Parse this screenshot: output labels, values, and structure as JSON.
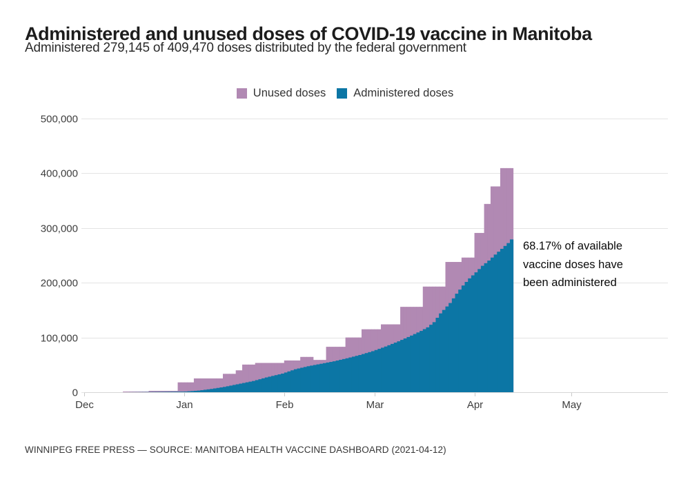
{
  "header": {
    "title": "Administered and unused doses of COVID-19 vaccine in Manitoba",
    "subtitle": "Administered 279,145 of 409,470 doses distributed by the federal government"
  },
  "footer": {
    "source": "WINNIPEG FREE PRESS — SOURCE: MANITOBA HEALTH VACCINE DASHBOARD (2021-04-12)"
  },
  "chart_data": {
    "type": "bar",
    "stacked": true,
    "title": "Administered and unused doses of COVID-19 vaccine in Manitoba",
    "subtitle": "Administered 279,145 of 409,470 doses distributed by the federal government",
    "administered_total": 279145,
    "distributed_total": 409470,
    "percent_administered": "68.17%",
    "legend": [
      {
        "label": "Unused doses",
        "color": "#b189b3"
      },
      {
        "label": "Administered doses",
        "color": "#0c76a5"
      }
    ],
    "series": [
      {
        "name": "Administered doses",
        "role": "administered",
        "color": "#0c76a5"
      },
      {
        "name": "Unused doses",
        "role": "unused",
        "color": "#b189b3"
      }
    ],
    "x_axis": {
      "domain": [
        "2020-12-01",
        "2021-05-31"
      ],
      "tick_dates": [
        "2020-12-01",
        "2021-01-01",
        "2021-02-01",
        "2021-03-01",
        "2021-04-01",
        "2021-05-01"
      ],
      "tick_labels": [
        "Dec",
        "Jan",
        "Feb",
        "Mar",
        "Apr",
        "May"
      ]
    },
    "y_axis": {
      "ylim": [
        0,
        500000
      ],
      "ticks": [
        0,
        100000,
        200000,
        300000,
        400000,
        500000
      ],
      "tick_labels": [
        "0",
        "100,000",
        "200,000",
        "300,000",
        "400,000",
        "500,000"
      ],
      "grid": true
    },
    "bars": {
      "start": "2020-12-13",
      "end": "2021-04-12",
      "frequency": "daily"
    },
    "distributed_steps": [
      {
        "from": "2020-12-13",
        "total": 1200
      },
      {
        "from": "2020-12-21",
        "total": 2500
      },
      {
        "from": "2020-12-30",
        "total": 18000
      },
      {
        "from": "2021-01-04",
        "total": 25200
      },
      {
        "from": "2021-01-13",
        "total": 33600
      },
      {
        "from": "2021-01-17",
        "total": 40000
      },
      {
        "from": "2021-01-19",
        "total": 50500
      },
      {
        "from": "2021-01-23",
        "total": 53500
      },
      {
        "from": "2021-02-01",
        "total": 58000
      },
      {
        "from": "2021-02-06",
        "total": 64500
      },
      {
        "from": "2021-02-10",
        "total": 59000
      },
      {
        "from": "2021-02-14",
        "total": 83000
      },
      {
        "from": "2021-02-20",
        "total": 100000
      },
      {
        "from": "2021-02-25",
        "total": 115000
      },
      {
        "from": "2021-03-03",
        "total": 124000
      },
      {
        "from": "2021-03-09",
        "total": 156000
      },
      {
        "from": "2021-03-16",
        "total": 193000
      },
      {
        "from": "2021-03-23",
        "total": 238000
      },
      {
        "from": "2021-03-28",
        "total": 246000
      },
      {
        "from": "2021-04-01",
        "total": 291000
      },
      {
        "from": "2021-04-04",
        "total": 344000
      },
      {
        "from": "2021-04-06",
        "total": 376000
      },
      {
        "from": "2021-04-09",
        "total": 409470
      }
    ],
    "administered_anchors": [
      {
        "date": "2020-12-13",
        "value": 0
      },
      {
        "date": "2020-12-16",
        "value": 150
      },
      {
        "date": "2020-12-21",
        "value": 400
      },
      {
        "date": "2020-12-26",
        "value": 700
      },
      {
        "date": "2020-12-31",
        "value": 1000
      },
      {
        "date": "2021-01-01",
        "value": 1200
      },
      {
        "date": "2021-01-05",
        "value": 3000
      },
      {
        "date": "2021-01-09",
        "value": 6000
      },
      {
        "date": "2021-01-13",
        "value": 9700
      },
      {
        "date": "2021-01-17",
        "value": 14500
      },
      {
        "date": "2021-01-22",
        "value": 20500
      },
      {
        "date": "2021-01-26",
        "value": 27000
      },
      {
        "date": "2021-01-31",
        "value": 34000
      },
      {
        "date": "2021-02-04",
        "value": 42000
      },
      {
        "date": "2021-02-08",
        "value": 47500
      },
      {
        "date": "2021-02-12",
        "value": 52000
      },
      {
        "date": "2021-02-16",
        "value": 56500
      },
      {
        "date": "2021-02-20",
        "value": 62000
      },
      {
        "date": "2021-02-24",
        "value": 68000
      },
      {
        "date": "2021-02-28",
        "value": 75000
      },
      {
        "date": "2021-03-04",
        "value": 83500
      },
      {
        "date": "2021-03-08",
        "value": 93000
      },
      {
        "date": "2021-03-12",
        "value": 103500
      },
      {
        "date": "2021-03-15",
        "value": 112000
      },
      {
        "date": "2021-03-17",
        "value": 118500
      },
      {
        "date": "2021-03-19",
        "value": 128000
      },
      {
        "date": "2021-03-21",
        "value": 144000
      },
      {
        "date": "2021-03-24",
        "value": 163000
      },
      {
        "date": "2021-03-26",
        "value": 180000
      },
      {
        "date": "2021-03-28",
        "value": 195000
      },
      {
        "date": "2021-03-30",
        "value": 208000
      },
      {
        "date": "2021-04-01",
        "value": 219000
      },
      {
        "date": "2021-04-03",
        "value": 231000
      },
      {
        "date": "2021-04-05",
        "value": 240500
      },
      {
        "date": "2021-04-07",
        "value": 251500
      },
      {
        "date": "2021-04-09",
        "value": 262000
      },
      {
        "date": "2021-04-11",
        "value": 272500
      },
      {
        "date": "2021-04-12",
        "value": 279145
      }
    ],
    "annotation": {
      "lines": [
        "68.17% of available",
        "vaccine doses have",
        "been administered"
      ]
    }
  }
}
